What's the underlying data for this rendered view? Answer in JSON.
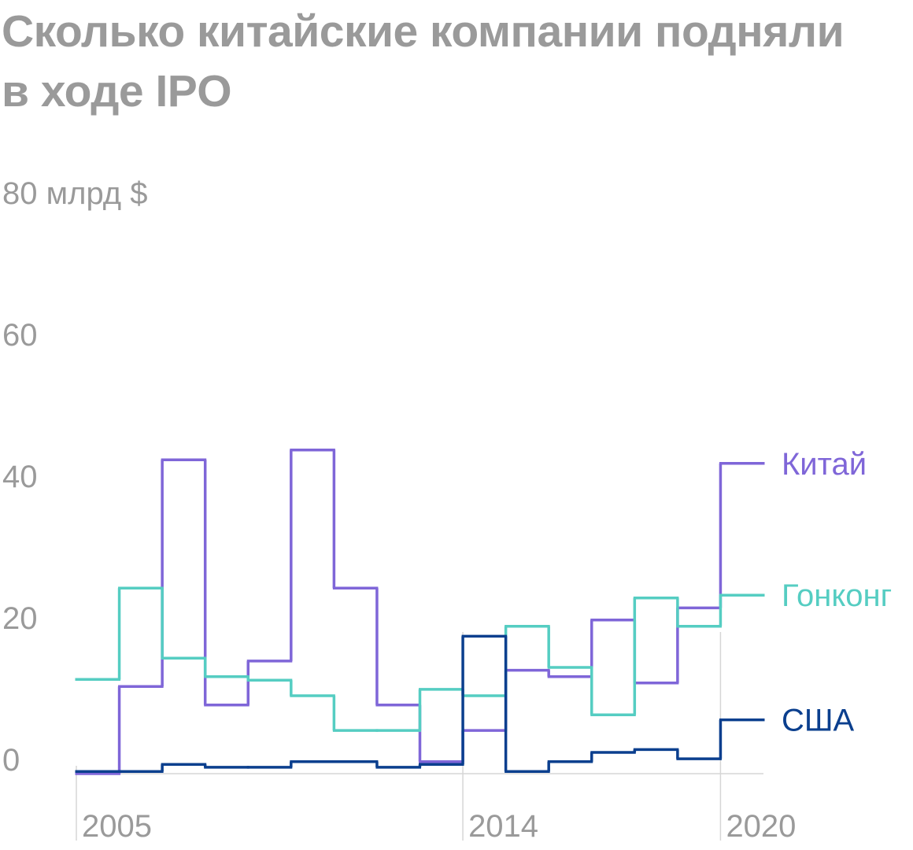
{
  "chart_data": {
    "type": "step",
    "title": "Сколько китайские компании подняли в ходе IPO",
    "x": [
      2005,
      2006,
      2007,
      2008,
      2009,
      2010,
      2011,
      2012,
      2013,
      2014,
      2015,
      2016,
      2017,
      2018,
      2019,
      2020
    ],
    "xlim": [
      2005,
      2021
    ],
    "xticks": [
      2005,
      2014,
      2020
    ],
    "ylim": [
      0,
      80
    ],
    "yticks": [
      0,
      20,
      40,
      60,
      {
        "value": 80,
        "label": "80 млрд $"
      }
    ],
    "series": [
      {
        "name": "Китай",
        "color": "#7f66d8",
        "values": [
          0,
          12.3,
          44.3,
          9.7,
          15.9,
          45.7,
          26.2,
          9.7,
          1.7,
          6.1,
          14.6,
          13.7,
          21.7,
          12.8,
          23.4,
          43.8
        ]
      },
      {
        "name": "Гонконг",
        "color": "#55cdc2",
        "values": [
          13.3,
          26.2,
          16.3,
          13.7,
          13.2,
          11,
          6.1,
          6.1,
          11.9,
          11,
          20.8,
          15,
          8.3,
          24.8,
          20.8,
          25.2
        ]
      },
      {
        "name": "США",
        "color": "#0b3f8e",
        "values": [
          0.3,
          0.3,
          1.3,
          0.9,
          0.9,
          1.7,
          1.7,
          0.9,
          1.3,
          19.4,
          0.3,
          1.7,
          3,
          3.4,
          2.1,
          7.6
        ]
      }
    ]
  }
}
